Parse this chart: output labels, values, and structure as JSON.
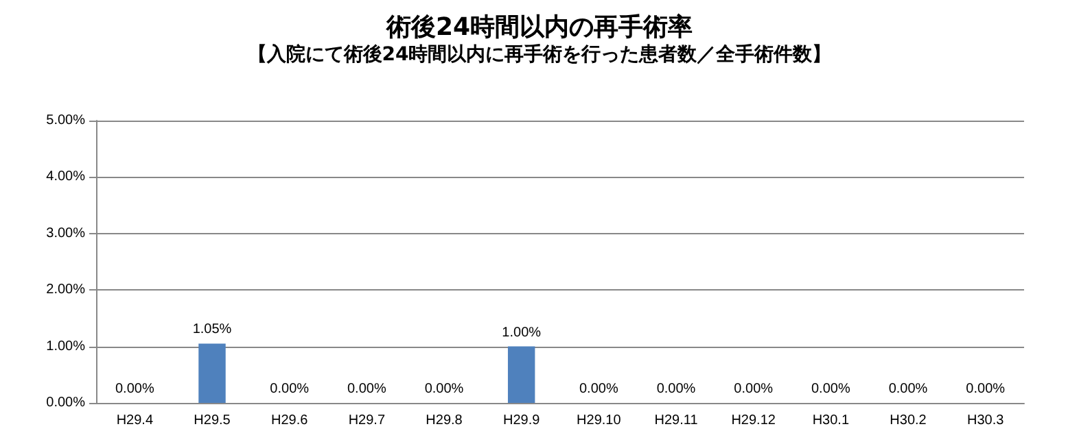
{
  "chart_data": {
    "type": "bar",
    "title": "術後24時間以内の再手術率",
    "subtitle": "【入院にて術後24時間以内に再手術を行った患者数／全手術件数】",
    "categories": [
      "H29.4",
      "H29.5",
      "H29.6",
      "H29.7",
      "H29.8",
      "H29.9",
      "H29.10",
      "H29.11",
      "H29.12",
      "H30.1",
      "H30.2",
      "H30.3"
    ],
    "series": [
      {
        "color": "#4f81bd",
        "values": [
          0,
          1.05,
          0,
          0,
          0,
          1.0,
          0,
          0,
          0,
          0,
          0,
          0
        ],
        "value_labels": [
          "0.00%",
          "1.05%",
          "0.00%",
          "0.00%",
          "0.00%",
          "1.00%",
          "0.00%",
          "0.00%",
          "0.00%",
          "0.00%",
          "0.00%",
          "0.00%"
        ]
      }
    ],
    "ylim": [
      0,
      5
    ],
    "yticks": [
      {
        "value": 0,
        "label": "0.00%"
      },
      {
        "value": 1,
        "label": "1.00%"
      },
      {
        "value": 2,
        "label": "2.00%"
      },
      {
        "value": 3,
        "label": "3.00%"
      },
      {
        "value": 4,
        "label": "4.00%"
      },
      {
        "value": 5,
        "label": "5.00%"
      }
    ],
    "grid": "y"
  }
}
